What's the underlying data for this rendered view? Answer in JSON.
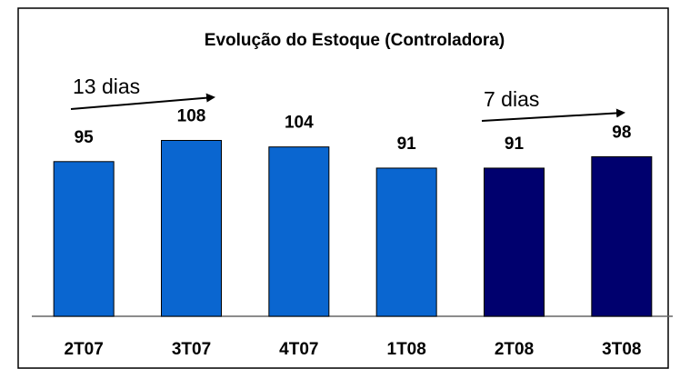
{
  "chart_data": {
    "type": "bar",
    "title": "Evolução do Estoque (Controladora)",
    "categories": [
      "2T07",
      "3T07",
      "4T07",
      "1T08",
      "2T08",
      "3T08"
    ],
    "values": [
      95,
      108,
      104,
      91,
      91,
      98
    ],
    "colors": [
      "#0a66d0",
      "#0a66d0",
      "#0a66d0",
      "#0a66d0",
      "#00006e",
      "#00006e"
    ],
    "ylim": [
      0,
      120
    ],
    "annotations": [
      "13 dias",
      "7 dias"
    ]
  }
}
